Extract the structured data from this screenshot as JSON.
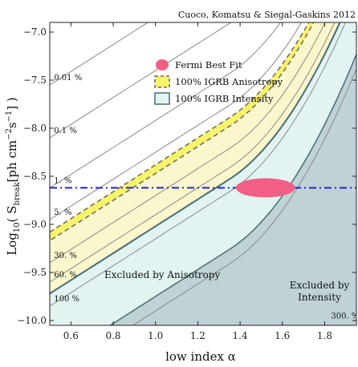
{
  "credit": "Cuoco, Komatsu & Siegal-Gaskins 2012",
  "chart_data": {
    "type": "contour",
    "xlabel": "low index α",
    "ylabel": "Log10( S_break[ph cm^-2 s^-1] )",
    "ylabel_parts": {
      "prefix": "Log",
      "sub1": "10",
      "mid": "( S",
      "sub2": "break",
      "unit_open": "[ph cm",
      "sup1": "−2",
      "s": "s",
      "sup2": "−1",
      "close": "] )"
    },
    "xlim": [
      0.5,
      1.95
    ],
    "ylim": [
      -10.05,
      -6.9
    ],
    "xticks": [
      0.6,
      0.8,
      1.0,
      1.2,
      1.4,
      1.6,
      1.8
    ],
    "xtick_labels": [
      "0.6",
      "0.8",
      "1.0",
      "1.2",
      "1.4",
      "1.6",
      "1.8"
    ],
    "yticks": [
      -7.0,
      -7.5,
      -8.0,
      -8.5,
      -9.0,
      -9.5,
      -10.0
    ],
    "ytick_labels": [
      "−7.0",
      "−7.5",
      "−8.0",
      "−8.5",
      "−9.0",
      "−9.5",
      "−10.0"
    ],
    "contours": [
      {
        "label": "0.01 %",
        "y_left": -7.55,
        "slope": 1.4,
        "curv": 1.5
      },
      {
        "label": "0.1 %",
        "y_left": -8.1,
        "slope": 1.4,
        "curv": 1.5
      },
      {
        "label": "1. %",
        "y_left": -8.62,
        "slope": 1.4,
        "curv": 1.5
      },
      {
        "label": "5. %",
        "y_left": -8.95,
        "slope": 1.4,
        "curv": 1.5
      },
      {
        "label": "30. %",
        "y_left": -9.4,
        "slope": 1.4,
        "curv": 1.5
      },
      {
        "label": "60. %",
        "y_left": -9.6,
        "slope": 1.4,
        "curv": 1.5
      },
      {
        "label": "100 %",
        "y_left": -9.85,
        "slope": 1.4,
        "curv": 1.5
      },
      {
        "label": "300. %",
        "y_left": -10.6,
        "slope": 1.4,
        "curv": 1.5
      }
    ],
    "anisotropy_band": {
      "upper_y_left": -9.08,
      "lower_y_left": -9.17
    },
    "intensity_boundary_y_left": -9.72,
    "fermi_best_fit": {
      "x": 1.52,
      "y": -8.62,
      "dx": 0.14,
      "dy": 0.1
    },
    "fermi_line_y": -8.62,
    "legend": [
      {
        "label": "Fermi Best Fit",
        "marker": "pink-ellipse"
      },
      {
        "label": "100% IGRB Anisotropy",
        "marker": "yellow-dashed-box"
      },
      {
        "label": "100% IGRB Intensity",
        "marker": "lightblue-box"
      }
    ],
    "region_labels": {
      "anisotropy": "Excluded by Anisotropy",
      "intensity_1": "Excluded by",
      "intensity_2": "Intensity"
    },
    "colors": {
      "anisotropy_fill": "#fbf7cc",
      "anisotropy_band": "#f7f36a",
      "intensity_fill": "#e2f4f2",
      "intensity_dark": "#bfd3d6",
      "fermi": "#f25f86",
      "fermi_line": "#2323c8",
      "boundary": "#4a6b72"
    },
    "grid": false,
    "legend_position": "top-right"
  }
}
